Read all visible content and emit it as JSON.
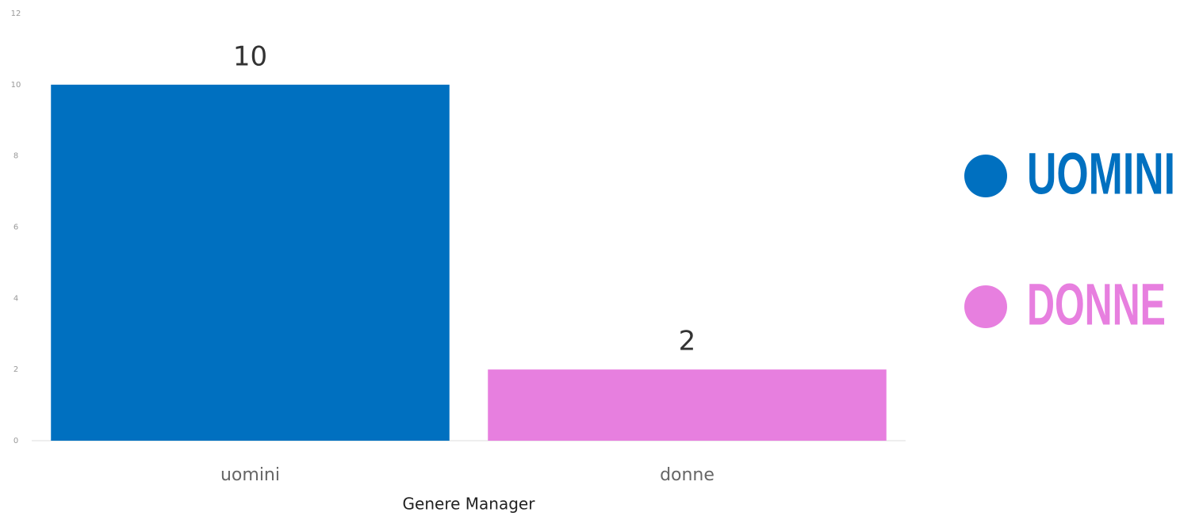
{
  "chart_data": {
    "type": "bar",
    "x_label": "Genere Manager",
    "categories": [
      "uomini",
      "donne"
    ],
    "values": [
      10,
      2
    ],
    "colors": [
      "#0070c0",
      "#e77fdf"
    ],
    "legend": [
      "UOMINI",
      "DONNE"
    ],
    "ylim": [
      0,
      12
    ],
    "yticks": [
      0,
      2,
      4,
      6,
      8,
      10,
      12
    ],
    "grid": false
  }
}
